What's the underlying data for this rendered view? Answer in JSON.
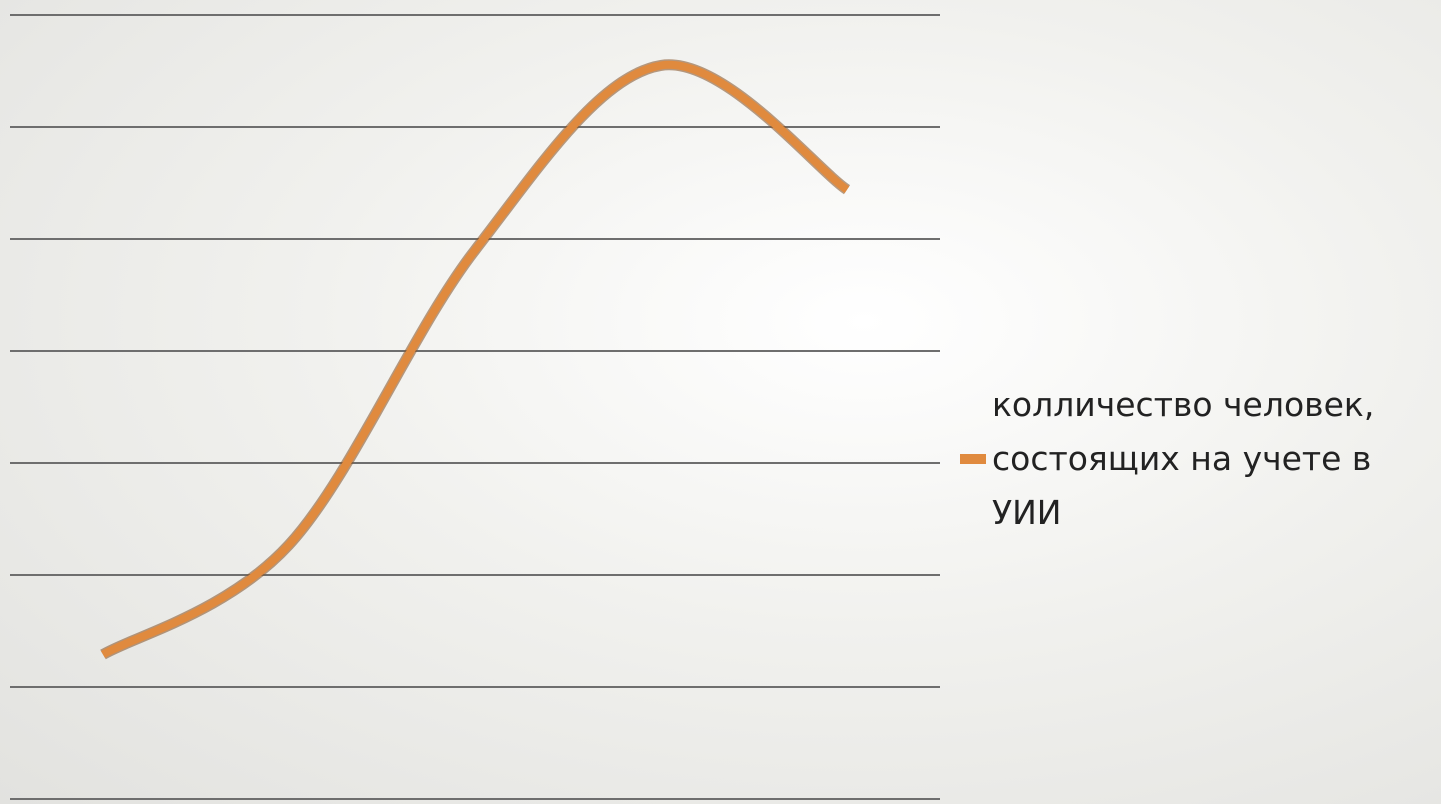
{
  "chart_data": {
    "type": "line",
    "categories": [
      null,
      null,
      null,
      null,
      null
    ],
    "series": [
      {
        "name": "колличество человек, состоящих на учете в УИИ",
        "color": "#e08a3e",
        "values": [
          1.29,
          2.27,
          4.9,
          6.55,
          5.44
        ]
      }
    ],
    "ylim": [
      0,
      7
    ],
    "yticks": [
      0,
      1,
      2,
      3,
      4,
      5,
      6,
      7
    ],
    "grid": true,
    "smooth": true,
    "legend": "right"
  }
}
